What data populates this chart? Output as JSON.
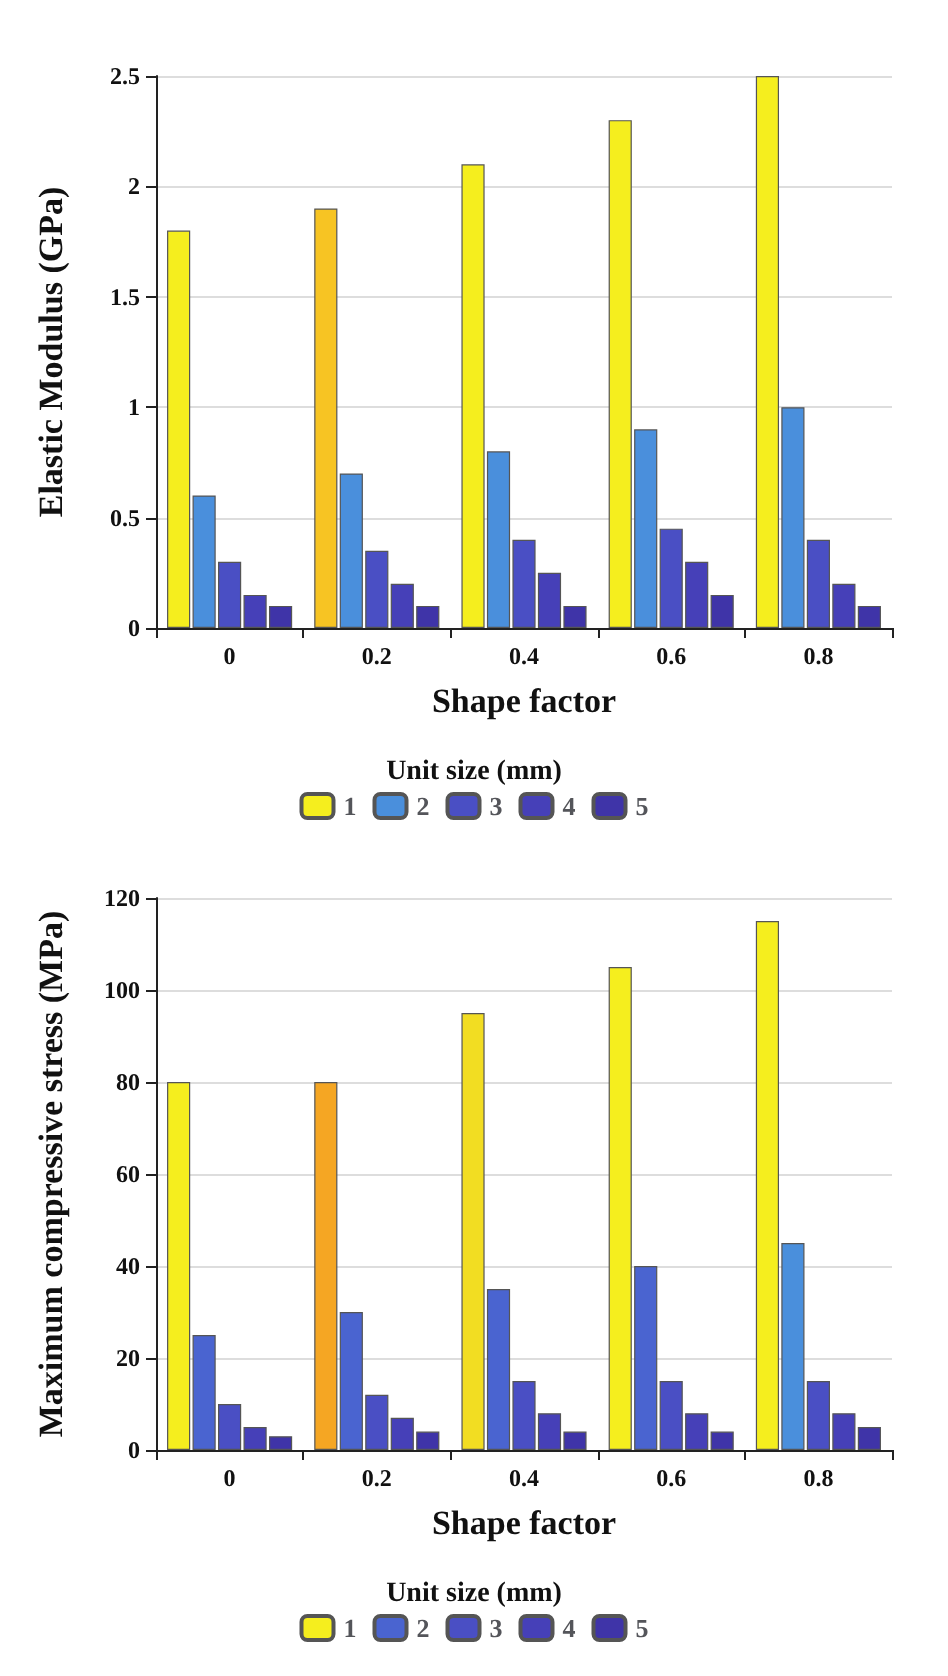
{
  "chart_data": [
    {
      "type": "bar",
      "ylabel": "Elastic Modulus (GPa)",
      "xlabel": "Shape factor",
      "legend_title": "Unit size (mm)",
      "categories": [
        "0",
        "0.2",
        "0.4",
        "0.6",
        "0.8"
      ],
      "series": [
        {
          "name": "1",
          "color": "#f5ee1e",
          "colors": [
            "#f5ee1e",
            "#f7c423",
            "#f5ee1e",
            "#f5ee1e",
            "#f5ee1e"
          ],
          "values": [
            1.8,
            1.9,
            2.1,
            2.3,
            2.5
          ]
        },
        {
          "name": "2",
          "color": "#4a8fdc",
          "values": [
            0.6,
            0.7,
            0.8,
            0.9,
            1.0
          ]
        },
        {
          "name": "3",
          "color": "#4a4fc4",
          "values": [
            0.3,
            0.35,
            0.4,
            0.45,
            0.4
          ]
        },
        {
          "name": "4",
          "color": "#4640b8",
          "values": [
            0.15,
            0.2,
            0.25,
            0.3,
            0.2
          ]
        },
        {
          "name": "5",
          "color": "#3f34a8",
          "values": [
            0.1,
            0.1,
            0.1,
            0.15,
            0.1
          ]
        }
      ],
      "ylim": [
        0,
        2.5
      ],
      "yticks": [
        0,
        0.5,
        1,
        1.5,
        2,
        2.5
      ],
      "grid": "y",
      "legend": "bottom"
    },
    {
      "type": "bar",
      "ylabel": "Maximum compressive stress (MPa)",
      "xlabel": "Shape factor",
      "legend_title": "Unit size (mm)",
      "categories": [
        "0",
        "0.2",
        "0.4",
        "0.6",
        "0.8"
      ],
      "series": [
        {
          "name": "1",
          "color": "#f5ee1e",
          "colors": [
            "#f5ee1e",
            "#f5a623",
            "#f2dd22",
            "#f5ee1e",
            "#f5ee1e"
          ],
          "values": [
            80,
            80,
            95,
            105,
            115
          ]
        },
        {
          "name": "2",
          "color": "#4a64d0",
          "colors": [
            "#4a64d0",
            "#4a64d0",
            "#4a64d0",
            "#4a64d0",
            "#4a8fdc"
          ],
          "values": [
            25,
            30,
            35,
            40,
            45
          ]
        },
        {
          "name": "3",
          "color": "#4a4fc4",
          "values": [
            10,
            12,
            15,
            15,
            15
          ]
        },
        {
          "name": "4",
          "color": "#4640b8",
          "values": [
            5,
            7,
            8,
            8,
            8
          ]
        },
        {
          "name": "5",
          "color": "#3f34a8",
          "values": [
            3,
            4,
            4,
            4,
            5
          ]
        }
      ],
      "ylim": [
        0,
        120
      ],
      "yticks": [
        0,
        20,
        40,
        60,
        80,
        100,
        120
      ],
      "grid": "y",
      "legend": "bottom"
    }
  ]
}
